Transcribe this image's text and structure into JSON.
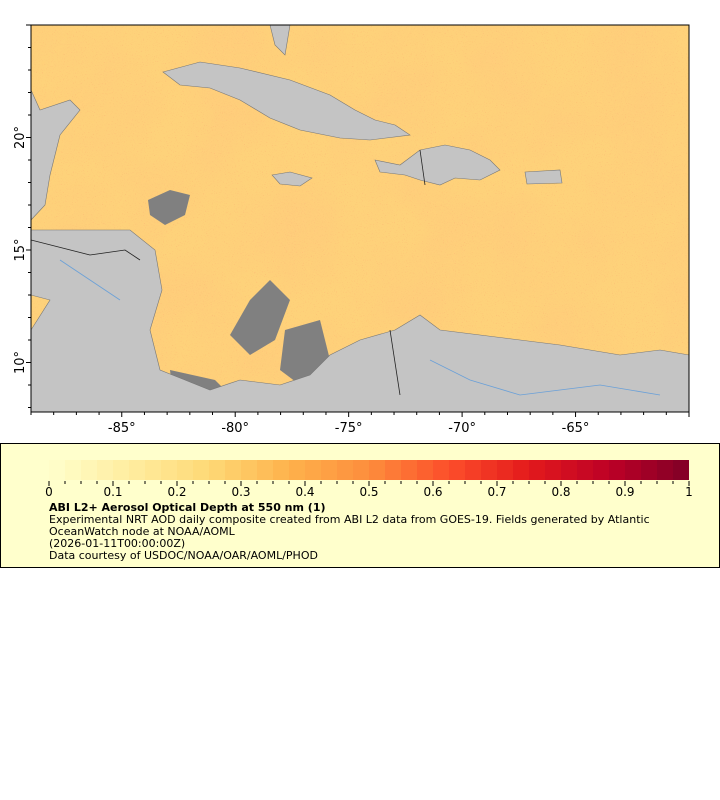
{
  "map": {
    "lon_range": [
      -89,
      -60
    ],
    "lat_range": [
      7.8,
      25
    ],
    "lon_ticks": [
      "-85°",
      "-80°",
      "-75°",
      "-70°",
      "-65°"
    ],
    "lat_ticks": [
      "20°",
      "15°",
      "10°"
    ],
    "colors": {
      "land": "#c4c4c4",
      "no_data": "#808080",
      "ocean_low": "#ffeda0",
      "ocean_mid": "#feb24c",
      "ocean_high": "#f03b20"
    }
  },
  "legend": {
    "colorbar_ticks": [
      "0",
      "0.1",
      "0.2",
      "0.3",
      "0.4",
      "0.5",
      "0.6",
      "0.7",
      "0.8",
      "0.9",
      "1"
    ],
    "colorbar_range": [
      0,
      1
    ],
    "colormap": [
      "#ffffcc",
      "#ffeda0",
      "#fed976",
      "#feb24c",
      "#fd8d3c",
      "#fc4e2a",
      "#e31a1c",
      "#bd0026",
      "#800026"
    ],
    "title": "ABI L2+ Aerosol Optical Depth at 550 nm (1)",
    "line1": "Experimental NRT AOD daily composite created from ABI L2 data from GOES-19. Fields generated by Atlantic",
    "line2": "OceanWatch node at NOAA/AOML",
    "line3": "(2026-01-11T00:00:00Z)",
    "line4": "Data courtesy of USDOC/NOAA/OAR/AOML/PHOD"
  }
}
